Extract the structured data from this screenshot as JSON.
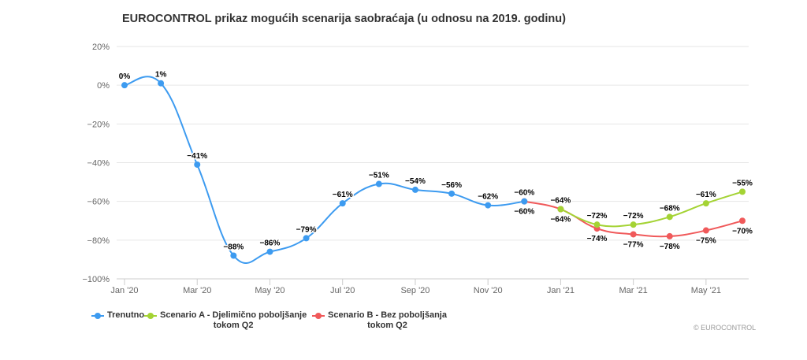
{
  "chart_data": {
    "type": "line",
    "title": "EUROCONTROL prikaz mogućih scenarija saobraćaja (u odnosu na 2019. godinu)",
    "xlabel": "",
    "ylabel": "",
    "ylim": [
      -100,
      20
    ],
    "y_ticks": [
      20,
      0,
      -20,
      -40,
      -60,
      -80,
      -100
    ],
    "y_tick_labels": [
      "20%",
      "0%",
      "−20%",
      "−40%",
      "−60%",
      "−80%",
      "−100%"
    ],
    "x_start_index": 0,
    "x_end_index": 17,
    "x_ticks": [
      {
        "index": 0,
        "label": "Jan '20"
      },
      {
        "index": 2,
        "label": "Mar '20"
      },
      {
        "index": 4,
        "label": "May '20"
      },
      {
        "index": 6,
        "label": "Jul '20"
      },
      {
        "index": 8,
        "label": "Sep '20"
      },
      {
        "index": 10,
        "label": "Nov '20"
      },
      {
        "index": 12,
        "label": "Jan '21"
      },
      {
        "index": 14,
        "label": "Mar '21"
      },
      {
        "index": 16,
        "label": "May '21"
      }
    ],
    "series": [
      {
        "name": "Trenutno",
        "color": "#3d9bf0",
        "points": [
          {
            "x": 0,
            "y": 0,
            "label": "0%",
            "label_pos": "above"
          },
          {
            "x": 1,
            "y": 1,
            "label": "1%",
            "label_pos": "above"
          },
          {
            "x": 2,
            "y": -41,
            "label": "−41%",
            "label_pos": "above"
          },
          {
            "x": 3,
            "y": -88,
            "label": "−88%",
            "label_pos": "above"
          },
          {
            "x": 4,
            "y": -86,
            "label": "−86%",
            "label_pos": "above"
          },
          {
            "x": 5,
            "y": -79,
            "label": "−79%",
            "label_pos": "above"
          },
          {
            "x": 6,
            "y": -61,
            "label": "−61%",
            "label_pos": "above"
          },
          {
            "x": 7,
            "y": -51,
            "label": "−51%",
            "label_pos": "above"
          },
          {
            "x": 8,
            "y": -54,
            "label": "−54%",
            "label_pos": "above"
          },
          {
            "x": 9,
            "y": -56,
            "label": "−56%",
            "label_pos": "above"
          },
          {
            "x": 10,
            "y": -62,
            "label": "−62%",
            "label_pos": "above"
          },
          {
            "x": 11,
            "y": -60,
            "label": "−60%",
            "label_pos": "above"
          }
        ]
      },
      {
        "name": "Scenario A - Djelimično poboljšanje tokom Q2",
        "legend_lines": [
          "Scenario A - Djelimično poboljšanje",
          "tokom Q2"
        ],
        "color": "#a4d334",
        "points": [
          {
            "x": 12,
            "y": -64,
            "label": "−64%",
            "label_pos": "above"
          },
          {
            "x": 13,
            "y": -72,
            "label": "−72%",
            "label_pos": "above"
          },
          {
            "x": 14,
            "y": -72,
            "label": "−72%",
            "label_pos": "above"
          },
          {
            "x": 15,
            "y": -68,
            "label": "−68%",
            "label_pos": "above"
          },
          {
            "x": 16,
            "y": -61,
            "label": "−61%",
            "label_pos": "above"
          },
          {
            "x": 17,
            "y": -55,
            "label": "−55%",
            "label_pos": "above"
          }
        ]
      },
      {
        "name": "Scenario B - Bez poboljšanja tokom Q2",
        "legend_lines": [
          "Scenario B - Bez poboljšanja",
          "tokom Q2"
        ],
        "color": "#f0595a",
        "points": [
          {
            "x": 11,
            "y": -60,
            "label": "−60%",
            "label_pos": "below"
          },
          {
            "x": 12,
            "y": -64,
            "label": "−64%",
            "label_pos": "below"
          },
          {
            "x": 13,
            "y": -74,
            "label": "−74%",
            "label_pos": "below"
          },
          {
            "x": 14,
            "y": -77,
            "label": "−77%",
            "label_pos": "below"
          },
          {
            "x": 15,
            "y": -78,
            "label": "−78%",
            "label_pos": "below"
          },
          {
            "x": 16,
            "y": -75,
            "label": "−75%",
            "label_pos": "below"
          },
          {
            "x": 17,
            "y": -70,
            "label": "−70%",
            "label_pos": "below"
          }
        ]
      }
    ],
    "legend": {
      "placement": "bottom-left",
      "items": [
        {
          "lines": [
            "Trenutno"
          ],
          "color": "#3d9bf0"
        },
        {
          "lines": [
            "Scenario A - Djelimično poboljšanje",
            "tokom Q2"
          ],
          "color": "#a4d334"
        },
        {
          "lines": [
            "Scenario B - Bez poboljšanja",
            "tokom Q2"
          ],
          "color": "#f0595a"
        }
      ]
    },
    "credit": "© EUROCONTROL"
  }
}
